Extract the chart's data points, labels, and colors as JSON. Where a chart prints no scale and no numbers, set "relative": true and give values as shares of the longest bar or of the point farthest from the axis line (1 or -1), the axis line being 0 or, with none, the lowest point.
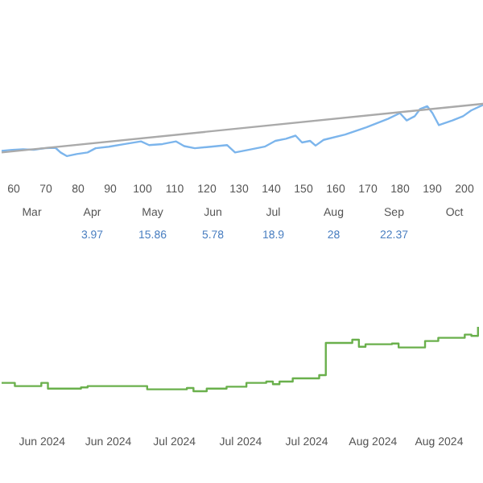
{
  "chart_data": [
    {
      "type": "line",
      "relative": true,
      "xlim": [
        56.5,
        206.5
      ],
      "xticks": [
        60,
        70,
        80,
        90,
        100,
        110,
        120,
        130,
        140,
        150,
        160,
        170,
        180,
        190,
        200
      ],
      "annotations": [
        "Mar",
        "Apr",
        "May",
        "Jun",
        "Jul",
        "Aug",
        "Sep",
        "Oct",
        "3.97",
        "15.86",
        "5.78",
        "18.9",
        "28",
        "22.37"
      ],
      "series": [
        {
          "color": "#7cb5ec",
          "x": [
            56.5,
            59.8,
            63.2,
            66.5,
            69.8,
            73.2,
            74.8,
            76.8,
            79.8,
            83.2,
            85.7,
            89.8,
            94.8,
            99.8,
            102.3,
            106.5,
            110.7,
            113.2,
            116.5,
            121.5,
            126.5,
            129,
            133.2,
            138.2,
            141.5,
            144.8,
            147.8,
            149.8,
            152.3,
            154,
            156.5,
            163.2,
            169.8,
            176.5,
            180.2,
            182.3,
            184.8,
            186.5,
            188.7,
            190.3,
            192.3,
            196.5,
            199.8,
            202.3,
            206.5
          ],
          "values": [
            0.1,
            0.12,
            0.13,
            0.12,
            0.15,
            0.16,
            0.07,
            0,
            0.04,
            0.07,
            0.15,
            0.18,
            0.23,
            0.28,
            0.21,
            0.23,
            0.28,
            0.19,
            0.15,
            0.18,
            0.21,
            0.07,
            0.12,
            0.18,
            0.29,
            0.33,
            0.39,
            0.26,
            0.29,
            0.2,
            0.31,
            0.41,
            0.55,
            0.71,
            0.82,
            0.68,
            0.76,
            0.9,
            0.95,
            0.82,
            0.59,
            0.68,
            0.76,
            0.87,
            0.99
          ]
        },
        {
          "color": "#aaaaaa",
          "x": [
            56.5,
            206.5
          ],
          "values": [
            0.07,
            1
          ]
        }
      ]
    },
    {
      "type": "step",
      "relative": true,
      "xlim": [
        "2024-06-09",
        "2024-08-21"
      ],
      "xticks": [
        {
          "value": "2024-06-15",
          "label": "Jun 2024"
        },
        {
          "value": "2024-06-25",
          "label": "Jun 2024"
        },
        {
          "value": "2024-07-05",
          "label": "Jul 2024"
        },
        {
          "value": "2024-07-15",
          "label": "Jul 2024"
        },
        {
          "value": "2024-07-25",
          "label": "Jul 2024"
        },
        {
          "value": "2024-08-04",
          "label": "Aug 2024"
        },
        {
          "value": "2024-08-14",
          "label": "Aug 2024"
        }
      ],
      "series": [
        {
          "color": "#6ab04c",
          "x": [
            "2024-06-09",
            "2024-06-11",
            "2024-06-15",
            "2024-06-16",
            "2024-06-21",
            "2024-06-22",
            "2024-06-28",
            "2024-07-01",
            "2024-07-07",
            "2024-07-08",
            "2024-07-10",
            "2024-07-13",
            "2024-07-16",
            "2024-07-19",
            "2024-07-20",
            "2024-07-21",
            "2024-07-23",
            "2024-07-27",
            "2024-07-28",
            "2024-08-01",
            "2024-08-02",
            "2024-08-03",
            "2024-08-07",
            "2024-08-08",
            "2024-08-12",
            "2024-08-14",
            "2024-08-18",
            "2024-08-19",
            "2024-08-20"
          ],
          "values": [
            0.13,
            0.08,
            0.13,
            0.04,
            0.06,
            0.08,
            0.08,
            0.03,
            0.05,
            0,
            0.04,
            0.07,
            0.13,
            0.15,
            0.11,
            0.15,
            0.2,
            0.25,
            0.75,
            0.8,
            0.69,
            0.73,
            0.74,
            0.68,
            0.78,
            0.83,
            0.88,
            0.86,
            1
          ]
        }
      ]
    }
  ]
}
